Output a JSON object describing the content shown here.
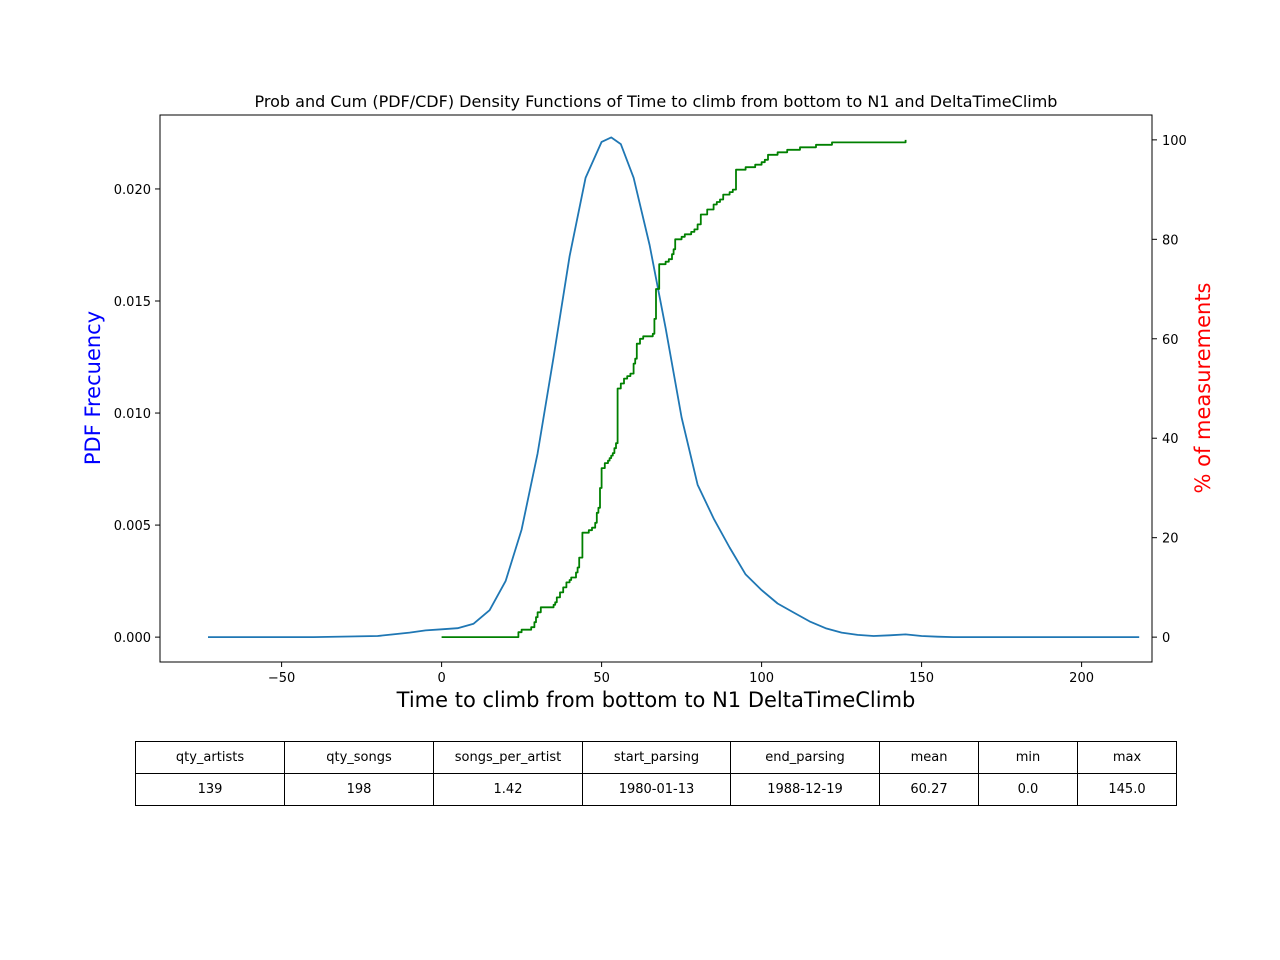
{
  "chart_data": {
    "type": "line",
    "title": "Prob and Cum (PDF/CDF) Density Functions of Time to climb from bottom to N1 and DeltaTimeClimb",
    "xlabel": "Time to climb from bottom to N1 DeltaTimeClimb",
    "ylabel_left": "PDF Frecuency",
    "ylabel_right": "% of measurements",
    "xlim": [
      -88,
      222
    ],
    "ylim_left": [
      -0.00111,
      0.0233
    ],
    "ylim_right": [
      -5,
      105
    ],
    "x_ticks": [
      -50,
      0,
      50,
      100,
      150,
      200
    ],
    "y_left_ticks": [
      0.0,
      0.005,
      0.01,
      0.015,
      0.02
    ],
    "y_left_tick_labels": [
      "0.000",
      "0.005",
      "0.010",
      "0.015",
      "0.020"
    ],
    "y_right_ticks": [
      0,
      20,
      40,
      60,
      80,
      100
    ],
    "grid": false,
    "colors": {
      "pdf": "#1f77b4",
      "cdf": "#008000",
      "ylabel_left": "#0000ff",
      "ylabel_right": "#ff0000"
    },
    "series": [
      {
        "axis": "left",
        "x": [
          -73,
          -40,
          -20,
          -10,
          -5,
          0,
          5,
          10,
          15,
          20,
          25,
          30,
          35,
          40,
          45,
          50,
          53,
          56,
          60,
          65,
          70,
          75,
          80,
          85,
          90,
          95,
          100,
          105,
          110,
          115,
          120,
          125,
          130,
          135,
          140,
          145,
          150,
          155,
          160,
          180,
          218
        ],
        "values": [
          0.0,
          0.0,
          5e-05,
          0.0002,
          0.0003,
          0.00035,
          0.0004,
          0.0006,
          0.0012,
          0.0025,
          0.0048,
          0.0082,
          0.0125,
          0.017,
          0.0205,
          0.0221,
          0.0223,
          0.022,
          0.0205,
          0.0175,
          0.0138,
          0.0098,
          0.0068,
          0.0053,
          0.004,
          0.0028,
          0.0021,
          0.0015,
          0.0011,
          0.0007,
          0.0004,
          0.0002,
          0.0001,
          5e-05,
          8e-05,
          0.00012,
          5e-05,
          2e-05,
          0.0,
          0.0,
          0.0
        ]
      },
      {
        "axis": "right",
        "x": [
          0,
          24,
          25,
          28,
          29,
          29.5,
          30,
          31,
          35,
          35.5,
          36,
          37,
          38,
          39,
          40,
          40.5,
          42,
          42.5,
          43,
          44,
          46,
          47,
          48,
          48.5,
          49,
          49.5,
          50,
          51,
          52,
          52.5,
          53,
          53.5,
          54,
          54.5,
          55,
          56,
          57,
          58,
          59,
          60,
          60.5,
          61,
          62,
          63,
          66,
          66.5,
          67,
          68,
          70,
          71,
          72,
          72.5,
          73,
          75,
          76,
          78,
          79,
          80,
          81,
          83,
          85,
          86,
          87,
          88,
          90,
          91,
          92,
          95,
          98,
          100,
          101,
          102,
          105,
          108,
          112,
          117,
          122,
          145
        ],
        "values": [
          0,
          1,
          1.5,
          2,
          3,
          4,
          5,
          6,
          6.5,
          7,
          8,
          9,
          10,
          11,
          11.5,
          12,
          13,
          14,
          16,
          21,
          21.5,
          22,
          23,
          25,
          26,
          30,
          34,
          35,
          35.5,
          36,
          36.5,
          37,
          38,
          39,
          50,
          51,
          52,
          52.5,
          53,
          55,
          56,
          59,
          60,
          60.5,
          61,
          64,
          70,
          75,
          75.5,
          76,
          77,
          78,
          80,
          80.5,
          81,
          81.5,
          82,
          83,
          85,
          86,
          87,
          87.5,
          88,
          89,
          89.5,
          90,
          94,
          94.5,
          95,
          95.5,
          96,
          97,
          97.5,
          98,
          98.5,
          99,
          99.5,
          100
        ]
      }
    ]
  },
  "table": {
    "headers": [
      "qty_artists",
      "qty_songs",
      "songs_per_artist",
      "start_parsing",
      "end_parsing",
      "mean",
      "min",
      "max"
    ],
    "values": [
      "139",
      "198",
      "1.42",
      "1980-01-13",
      "1988-12-19",
      "60.27",
      "0.0",
      "145.0"
    ]
  }
}
